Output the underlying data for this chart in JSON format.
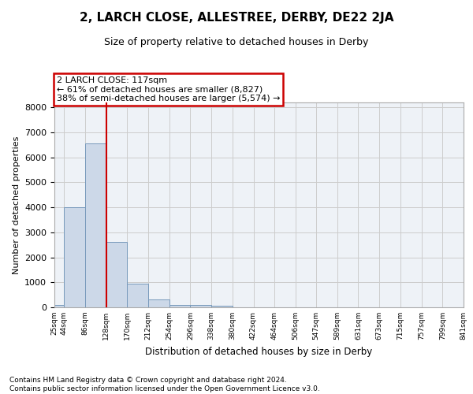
{
  "title": "2, LARCH CLOSE, ALLESTREE, DERBY, DE22 2JA",
  "subtitle": "Size of property relative to detached houses in Derby",
  "xlabel": "Distribution of detached houses by size in Derby",
  "ylabel": "Number of detached properties",
  "bar_color": "#ccd8e8",
  "bar_edge_color": "#7799bb",
  "bin_edges": [
    25,
    44,
    86,
    128,
    170,
    212,
    254,
    296,
    338,
    380,
    422,
    464,
    506,
    547,
    589,
    631,
    673,
    715,
    757,
    799,
    841
  ],
  "bin_labels": [
    "25sqm",
    "44sqm",
    "86sqm",
    "128sqm",
    "170sqm",
    "212sqm",
    "254sqm",
    "296sqm",
    "338sqm",
    "380sqm",
    "422sqm",
    "464sqm",
    "506sqm",
    "547sqm",
    "589sqm",
    "631sqm",
    "673sqm",
    "715sqm",
    "757sqm",
    "799sqm",
    "841sqm"
  ],
  "bar_heights": [
    80,
    4000,
    6550,
    2620,
    960,
    310,
    110,
    80,
    55,
    0,
    0,
    0,
    0,
    0,
    0,
    0,
    0,
    0,
    0,
    0
  ],
  "vline_x": 128,
  "vline_color": "#cc0000",
  "annotation_text": "2 LARCH CLOSE: 117sqm\n← 61% of detached houses are smaller (8,827)\n38% of semi-detached houses are larger (5,574) →",
  "annotation_box_color": "#cc0000",
  "ylim": [
    0,
    8200
  ],
  "yticks": [
    0,
    1000,
    2000,
    3000,
    4000,
    5000,
    6000,
    7000,
    8000
  ],
  "footer_text": "Contains HM Land Registry data © Crown copyright and database right 2024.\nContains public sector information licensed under the Open Government Licence v3.0.",
  "grid_color": "#cccccc",
  "background_color": "#eef2f7"
}
